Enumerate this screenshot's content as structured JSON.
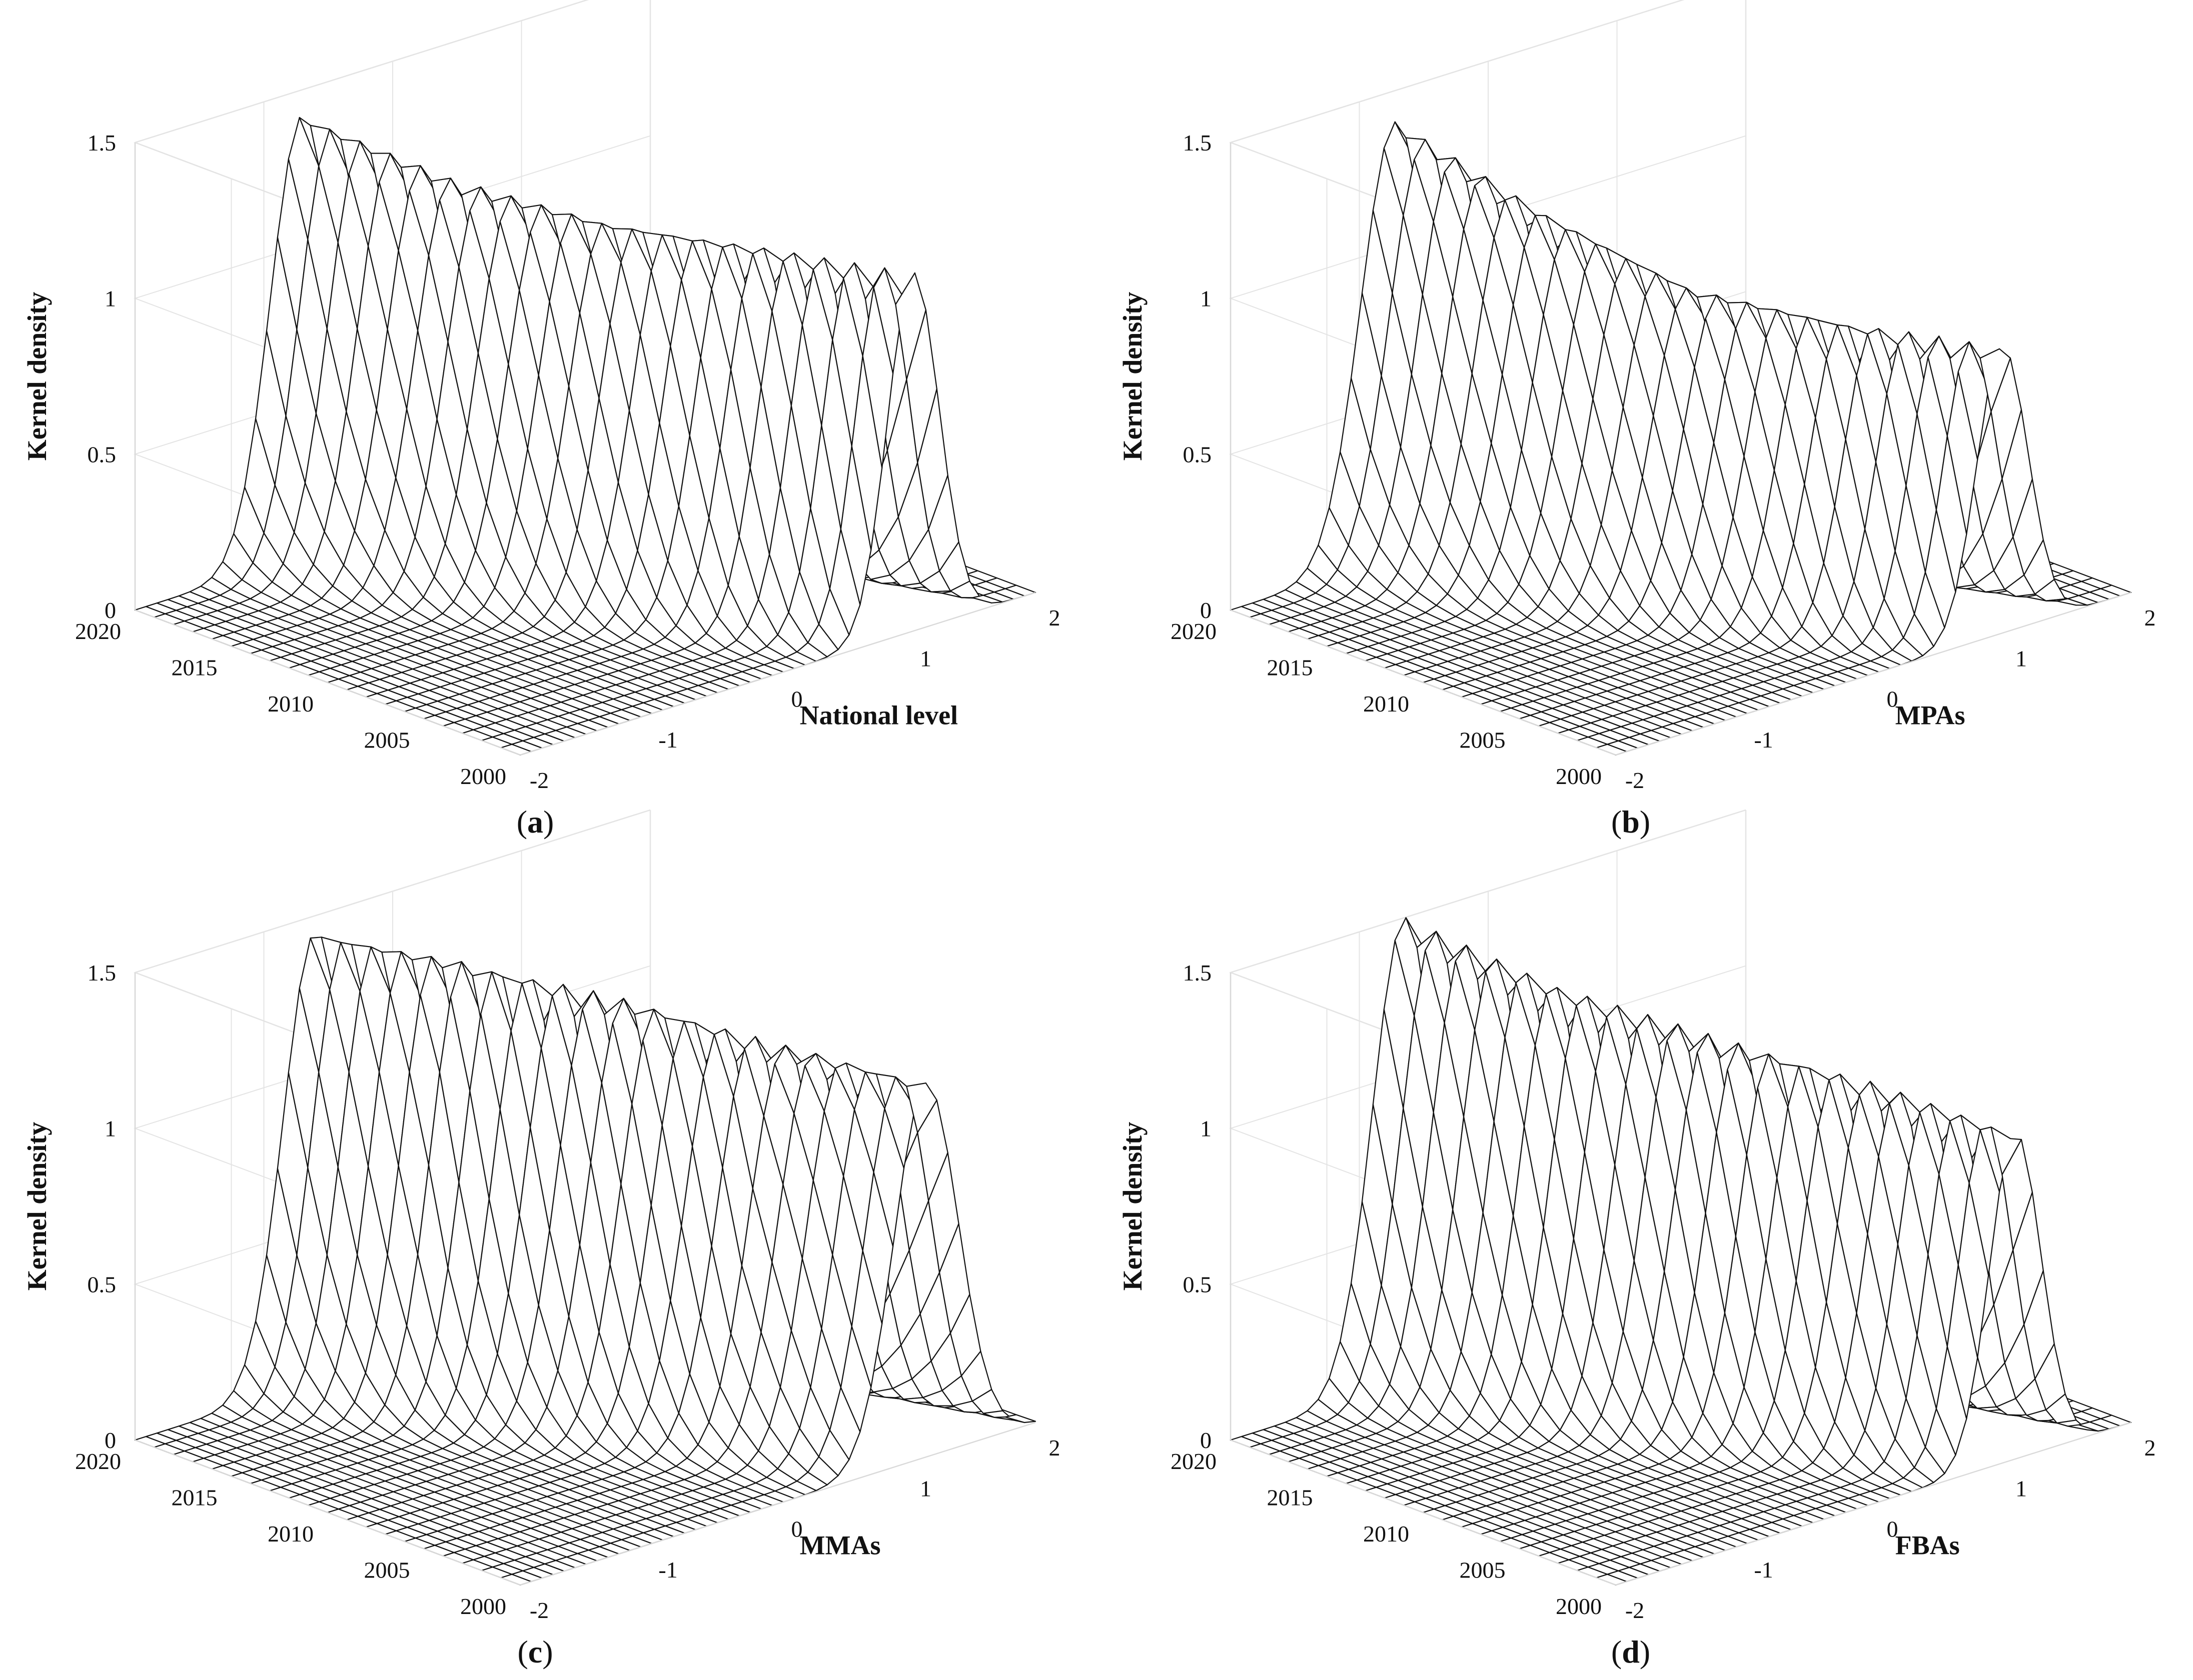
{
  "figure": {
    "colors": {
      "mesh_line": "#111111",
      "surface_fill": "#ffffff",
      "box_line": "#d9d9d9"
    }
  },
  "chart_data": [
    {
      "type": "surface",
      "panel_label": "a",
      "xlabel": "National level",
      "ylabel": "",
      "zlabel": "Kernel density",
      "x_ticks": [
        "-2",
        "-1",
        "0",
        "1",
        "2"
      ],
      "y_ticks": [
        "2000",
        "2005",
        "2010",
        "2015",
        "2020"
      ],
      "z_ticks": [
        "0",
        "0.5",
        "1",
        "1.5"
      ],
      "xlim": [
        -2,
        2
      ],
      "ylim": [
        2000,
        2020
      ],
      "zlim": [
        0,
        1.5
      ],
      "grid": true,
      "years": [
        2000,
        2005,
        2010,
        2015,
        2020
      ],
      "series": [
        {
          "year": 2000,
          "mode_x": 1.05,
          "sigma": 0.2,
          "peak_density": 1.15
        },
        {
          "year": 2005,
          "mode_x": 0.6,
          "sigma": 0.25,
          "peak_density": 1.18
        },
        {
          "year": 2010,
          "mode_x": 0.15,
          "sigma": 0.27,
          "peak_density": 1.2
        },
        {
          "year": 2015,
          "mode_x": -0.3,
          "sigma": 0.27,
          "peak_density": 1.28
        },
        {
          "year": 2020,
          "mode_x": -0.7,
          "sigma": 0.25,
          "peak_density": 1.42
        }
      ]
    },
    {
      "type": "surface",
      "panel_label": "b",
      "xlabel": "MPAs",
      "ylabel": "",
      "zlabel": "Kernel density",
      "x_ticks": [
        "-2",
        "-1",
        "0",
        "1",
        "2"
      ],
      "y_ticks": [
        "2000",
        "2005",
        "2010",
        "2015",
        "2020"
      ],
      "z_ticks": [
        "0",
        "0.5",
        "1",
        "1.5"
      ],
      "xlim": [
        -2,
        2
      ],
      "ylim": [
        2000,
        2020
      ],
      "zlim": [
        0,
        1.5
      ],
      "grid": true,
      "years": [
        2000,
        2005,
        2010,
        2015,
        2020
      ],
      "series": [
        {
          "year": 2000,
          "mode_x": 1.0,
          "sigma": 0.2,
          "peak_density": 0.92
        },
        {
          "year": 2005,
          "mode_x": 0.5,
          "sigma": 0.24,
          "peak_density": 0.95
        },
        {
          "year": 2010,
          "mode_x": 0.05,
          "sigma": 0.27,
          "peak_density": 1.0
        },
        {
          "year": 2015,
          "mode_x": -0.35,
          "sigma": 0.28,
          "peak_density": 1.18
        },
        {
          "year": 2020,
          "mode_x": -0.72,
          "sigma": 0.27,
          "peak_density": 1.4
        }
      ]
    },
    {
      "type": "surface",
      "panel_label": "c",
      "xlabel": "MMAs",
      "ylabel": "",
      "zlabel": "Kernel density",
      "x_ticks": [
        "-2",
        "-1",
        "0",
        "1",
        "2"
      ],
      "y_ticks": [
        "2000",
        "2005",
        "2010",
        "2015",
        "2020"
      ],
      "z_ticks": [
        "0",
        "0.5",
        "1",
        "1.5"
      ],
      "xlim": [
        -2,
        2
      ],
      "ylim": [
        2000,
        2020
      ],
      "zlim": [
        0,
        1.5
      ],
      "grid": true,
      "years": [
        2000,
        2005,
        2010,
        2015,
        2020
      ],
      "series": [
        {
          "year": 2000,
          "mode_x": 1.15,
          "sigma": 0.25,
          "peak_density": 1.2
        },
        {
          "year": 2005,
          "mode_x": 0.8,
          "sigma": 0.27,
          "peak_density": 1.25
        },
        {
          "year": 2010,
          "mode_x": 0.3,
          "sigma": 0.27,
          "peak_density": 1.35
        },
        {
          "year": 2015,
          "mode_x": -0.2,
          "sigma": 0.25,
          "peak_density": 1.42
        },
        {
          "year": 2020,
          "mode_x": -0.6,
          "sigma": 0.25,
          "peak_density": 1.45
        }
      ]
    },
    {
      "type": "surface",
      "panel_label": "d",
      "xlabel": "FBAs",
      "ylabel": "",
      "zlabel": "Kernel density",
      "x_ticks": [
        "-2",
        "-1",
        "0",
        "1",
        "2"
      ],
      "y_ticks": [
        "2000",
        "2005",
        "2010",
        "2015",
        "2020"
      ],
      "z_ticks": [
        "0",
        "0.5",
        "1",
        "1.5"
      ],
      "xlim": [
        -2,
        2
      ],
      "ylim": [
        2000,
        2020
      ],
      "zlim": [
        0,
        1.5
      ],
      "grid": true,
      "years": [
        2000,
        2005,
        2010,
        2015,
        2020
      ],
      "series": [
        {
          "year": 2000,
          "mode_x": 1.1,
          "sigma": 0.2,
          "peak_density": 1.05
        },
        {
          "year": 2005,
          "mode_x": 0.7,
          "sigma": 0.24,
          "peak_density": 1.15
        },
        {
          "year": 2010,
          "mode_x": 0.2,
          "sigma": 0.25,
          "peak_density": 1.25
        },
        {
          "year": 2015,
          "mode_x": -0.25,
          "sigma": 0.25,
          "peak_density": 1.35
        },
        {
          "year": 2020,
          "mode_x": -0.65,
          "sigma": 0.25,
          "peak_density": 1.5
        }
      ]
    }
  ]
}
